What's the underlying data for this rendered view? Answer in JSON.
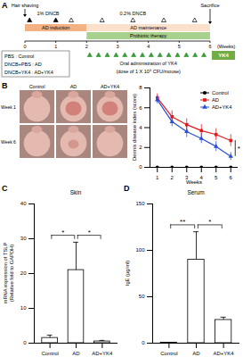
{
  "panel_labels": [
    "A",
    "B",
    "C",
    "D"
  ],
  "timeline": {
    "weeks": [
      0,
      1,
      2,
      3,
      4,
      5,
      6
    ],
    "weeks_label": "(Weeks)",
    "hair_shaving": "Hair shaving",
    "sacrifice": "Sacrifice",
    "dncb_high": "1% DNCB",
    "dncb_low": "0.2% DNCB",
    "phases": [
      {
        "label": "AD induction",
        "start": 0,
        "end": 2,
        "color": "#f4b183"
      },
      {
        "label": "AD maintenance",
        "start": 2,
        "end": 6,
        "color": "#fbe0cc"
      },
      {
        "label": "Probiotic therapy",
        "start": 2,
        "end": 6,
        "color": "#a9d18e"
      }
    ],
    "groups": [
      "PBS : Control",
      "DNCB+PBS : AD",
      "DNCB+YK4 : AD+YK4"
    ],
    "treatment": "Oral administration of YK4",
    "dose": "(dose of 1 X 10⁹ CFU/mouse)",
    "treatment_tag": "YK4"
  },
  "photos": {
    "columns": [
      "Control",
      "AD",
      "AD+YK4"
    ],
    "rows": [
      "Week 1",
      "Week 6"
    ]
  },
  "chart_data": [
    {
      "type": "line",
      "x_label": "Weeks",
      "y_label": "Dermis disease index (score)",
      "x": [
        1,
        2,
        3,
        4,
        5,
        6
      ],
      "xlim": [
        0.5,
        6.5
      ],
      "xticks": [
        1,
        2,
        3,
        4,
        5,
        6
      ],
      "ylim": [
        0,
        8
      ],
      "yticks": [
        0,
        2,
        4,
        6,
        8
      ],
      "legend": "top-right",
      "series": [
        {
          "name": "Control",
          "color": "#000000",
          "marker": "circle",
          "values": [
            0,
            0,
            0,
            0,
            0,
            0
          ],
          "errors": [
            0,
            0,
            0,
            0,
            0,
            0
          ]
        },
        {
          "name": "AD",
          "color": "#e41a1c",
          "marker": "square",
          "values": [
            7,
            5.1,
            4.3,
            3.7,
            3.3,
            2.7
          ],
          "errors": [
            0.4,
            0.6,
            0.6,
            0.6,
            0.6,
            0.6
          ]
        },
        {
          "name": "AD+YK4",
          "color": "#2a4fd6",
          "marker": "triangle",
          "values": [
            6.8,
            4.6,
            3.6,
            2.9,
            2.1,
            1.1
          ],
          "errors": [
            0.4,
            0.5,
            0.6,
            0.5,
            0.5,
            0.4
          ]
        }
      ],
      "annotations": [
        {
          "text": "*",
          "x": 6,
          "between": [
            "AD",
            "AD+YK4"
          ]
        }
      ]
    },
    {
      "type": "bar",
      "title": "Skin",
      "y_label": "mRNA expression of TSLP\n(Relative fold to GAPDH)",
      "categories": [
        "Control",
        "AD",
        "AD+YK4"
      ],
      "values": [
        1.5,
        21,
        0.5
      ],
      "errors": [
        0.8,
        8,
        0.3
      ],
      "color": "#ffffff",
      "ylim": [
        0,
        40
      ],
      "yticks": [
        0,
        10,
        20,
        30,
        40
      ],
      "annotations": [
        {
          "text": "*",
          "from": "Control",
          "to": "AD"
        },
        {
          "text": "*",
          "from": "AD",
          "to": "AD+YK4"
        }
      ]
    },
    {
      "type": "bar",
      "title": "Serum",
      "y_label": "IgE (μg/ml)",
      "categories": [
        "Control",
        "AD",
        "AD+YK4"
      ],
      "values": [
        0.5,
        90,
        25
      ],
      "errors": [
        0.3,
        30,
        3
      ],
      "color": "#ffffff",
      "ylim": [
        0,
        150
      ],
      "yticks": [
        0,
        50,
        100,
        150
      ],
      "annotations": [
        {
          "text": "**",
          "from": "Control",
          "to": "AD"
        },
        {
          "text": "*",
          "from": "AD",
          "to": "AD+YK4"
        }
      ]
    }
  ]
}
